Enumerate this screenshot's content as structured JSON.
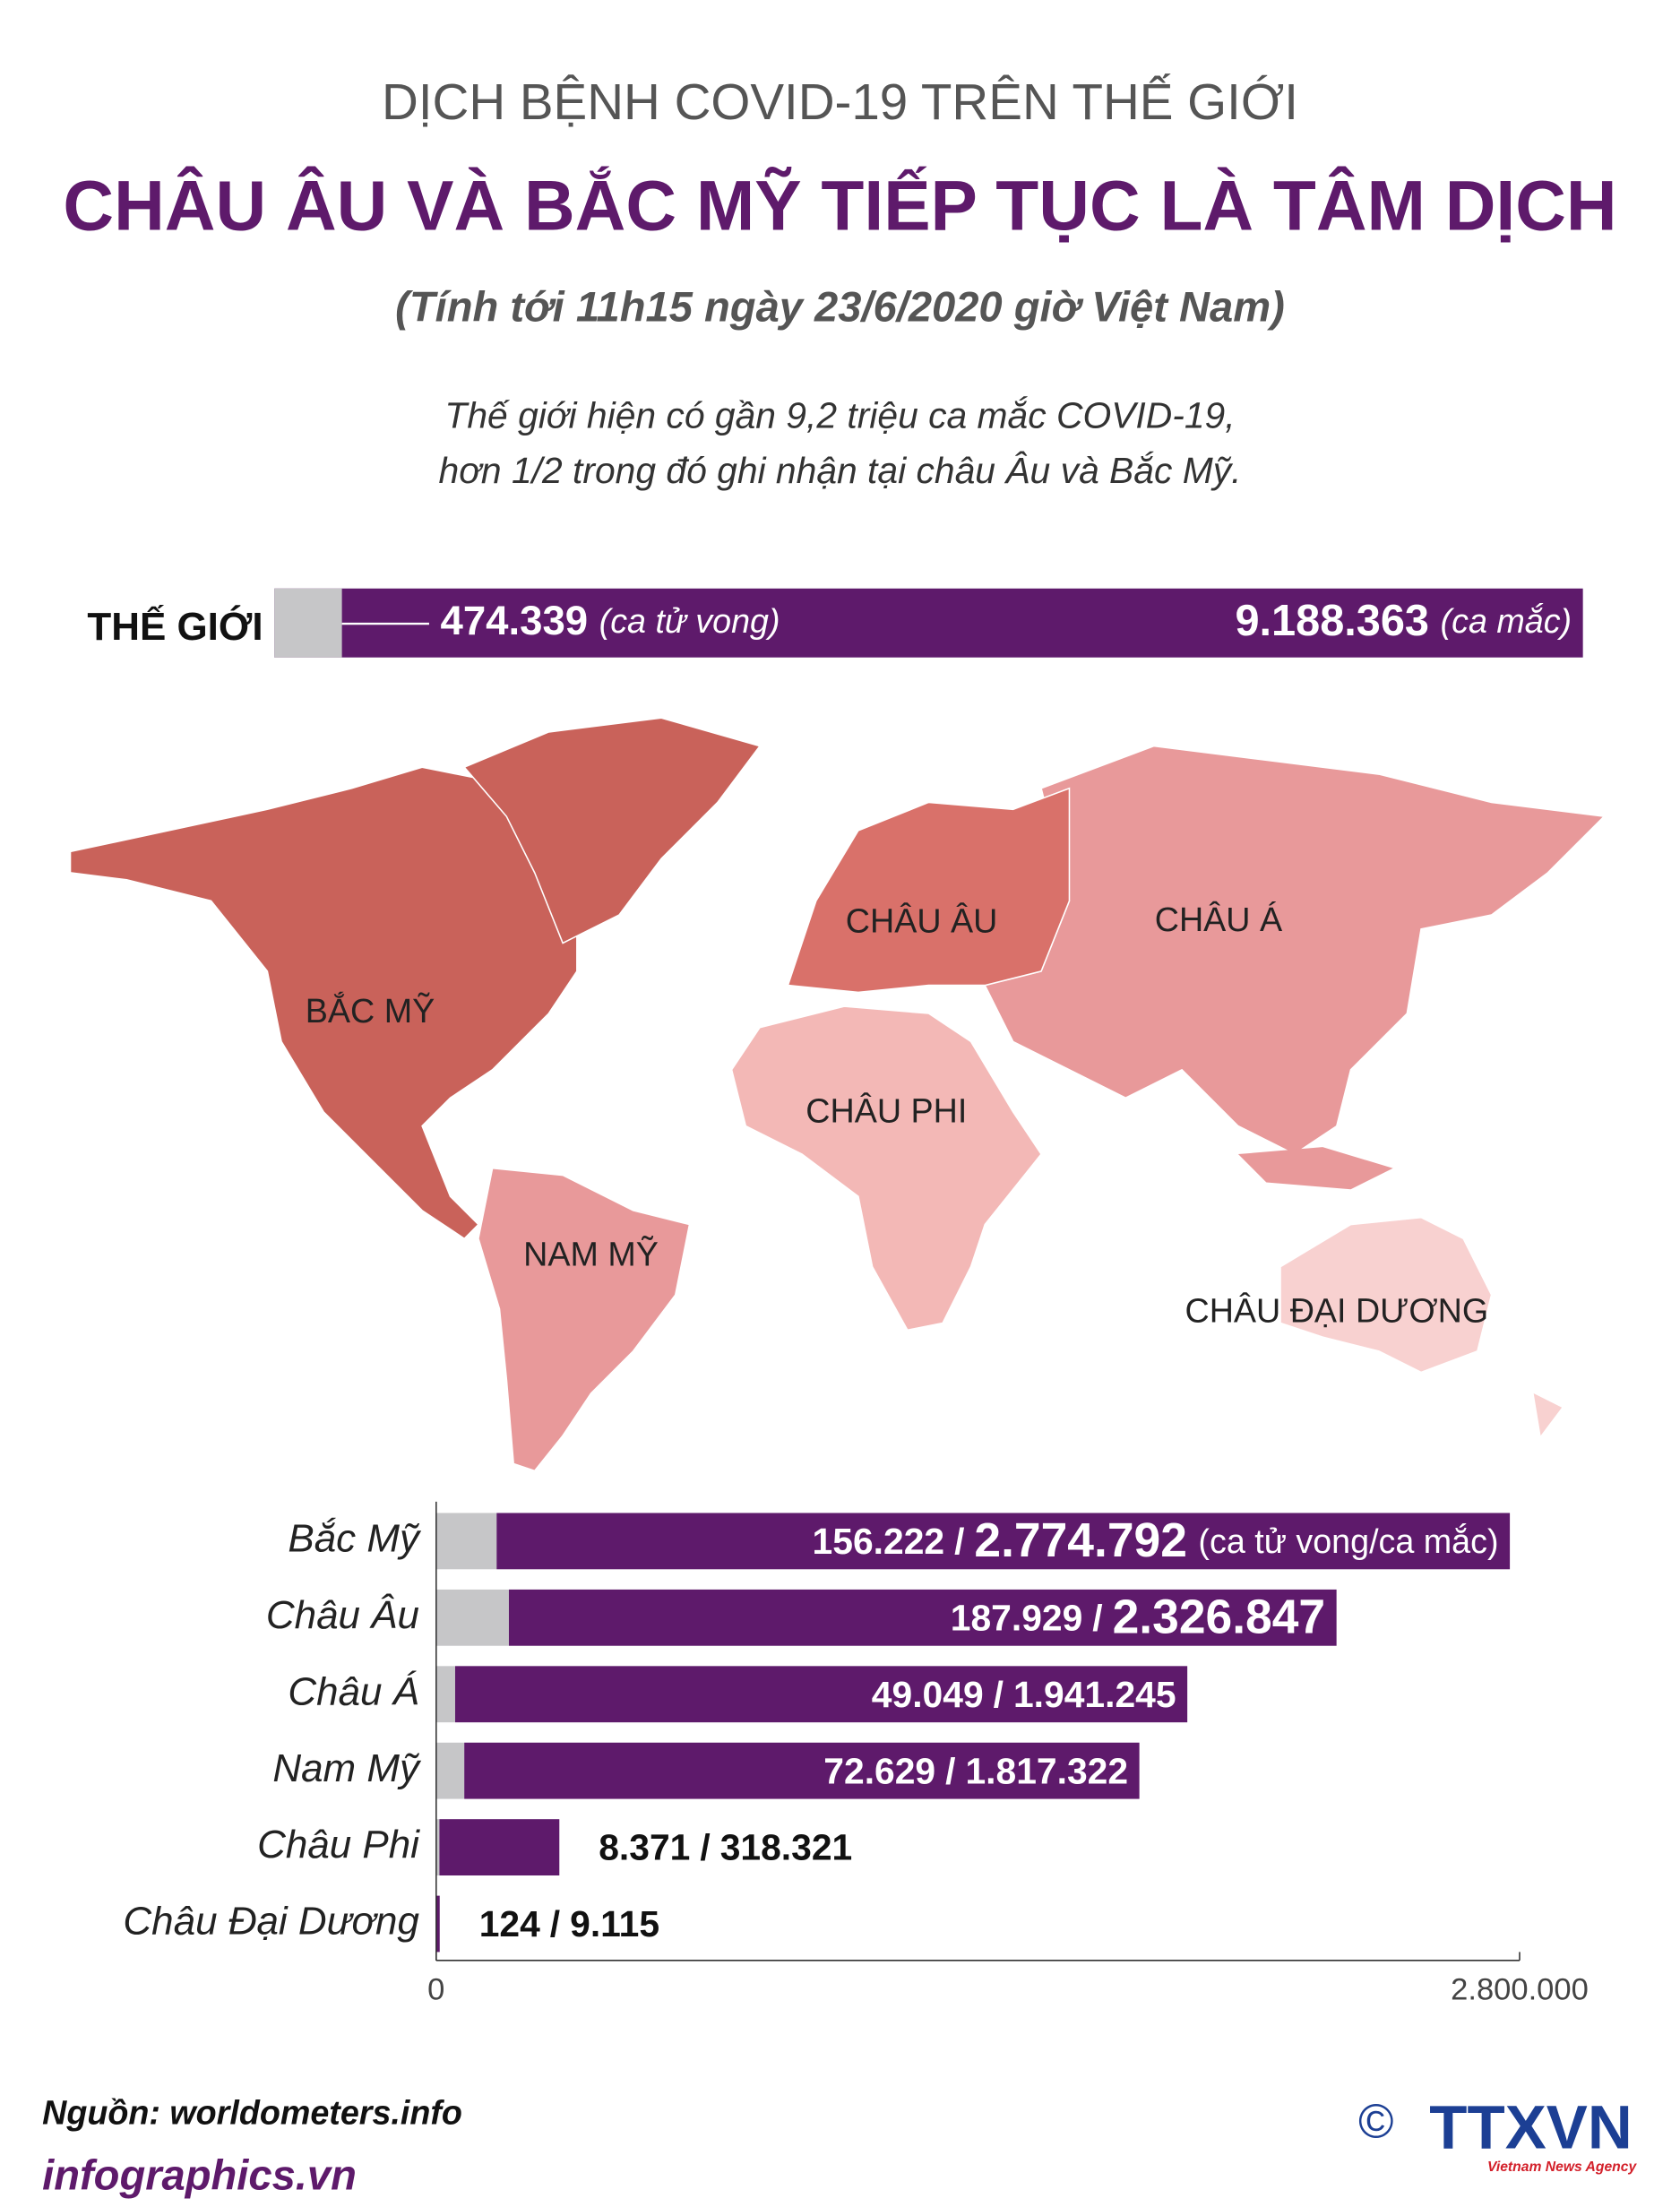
{
  "header": {
    "kicker": "DỊCH BỆNH COVID-19 TRÊN THẾ GIỚI",
    "title": "CHÂU ÂU VÀ BẮC MỸ TIẾP TỤC LÀ TÂM DỊCH",
    "subtitle": "(Tính tới 11h15 ngày 23/6/2020 giờ Việt Nam)",
    "description": [
      "Thế giới hiện có gần 9,2 triệu ca mắc COVID-19,",
      "hơn 1/2 trong đó ghi nhận tại châu Âu và Bắc Mỹ."
    ]
  },
  "world": {
    "label": "THẾ GIỚI",
    "deaths": 474339,
    "deaths_label": "474.339",
    "deaths_unit": "(ca tử vong)",
    "cases": 9188363,
    "cases_label": "9.188.363",
    "cases_unit": "(ca mắc)"
  },
  "map_labels": [
    "BẮC MỸ",
    "CHÂU ÂU",
    "CHÂU Á",
    "NAM MỸ",
    "CHÂU PHI",
    "CHÂU ĐẠI DƯƠNG"
  ],
  "chart_data": {
    "type": "bar",
    "orientation": "horizontal",
    "categories": [
      "Bắc Mỹ",
      "Châu Âu",
      "Châu Á",
      "Nam Mỹ",
      "Châu Phi",
      "Châu Đại Dương"
    ],
    "series": [
      {
        "color": "#c6c6c8",
        "values": [
          156222,
          187929,
          49049,
          72629,
          8371,
          124
        ],
        "value_labels": [
          "156.222",
          "187.929",
          "49.049",
          "72.629",
          "8.371",
          "124"
        ]
      },
      {
        "color": "#5e1a6b",
        "values": [
          2774792,
          2326847,
          1941245,
          1817322,
          318321,
          9115
        ],
        "value_labels": [
          "2.774.792",
          "2.326.847",
          "1.941.245",
          "1.817.322",
          "318.321",
          "9.115"
        ]
      }
    ],
    "value_separator": "/",
    "annotation": "(ca tử vong/ca mắc)",
    "xlim": [
      0,
      2800000
    ],
    "xticks": [
      0,
      {
        "value": 2800000,
        "label": "2.800.000"
      }
    ]
  },
  "footer": {
    "source": "Nguồn: worldometers.info",
    "site": "infographics.vn",
    "copyright": "©",
    "logo": "TTXVN",
    "agency": "Vietnam News Agency"
  }
}
